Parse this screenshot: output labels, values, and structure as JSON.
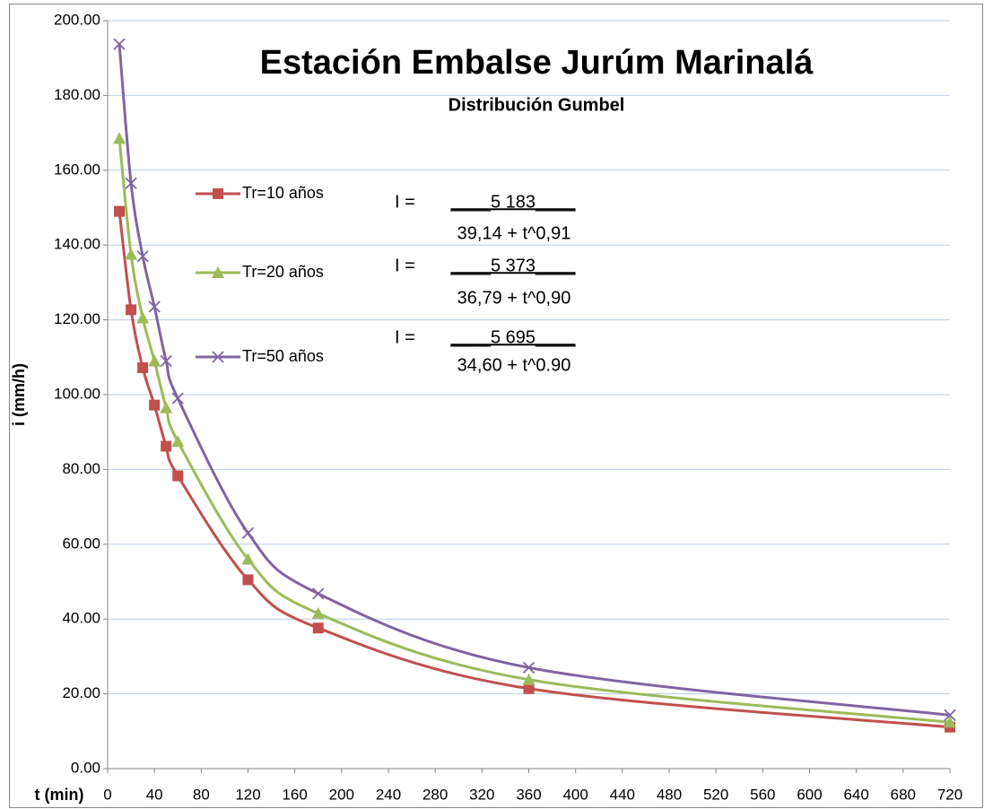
{
  "chart_data": {
    "type": "line",
    "title": "Estación Embalse Jurúm Marinalá",
    "subtitle": "Distribución Gumbel",
    "x_label": "t (min)",
    "y_label": "i (mm/h)",
    "x": [
      10,
      20,
      30,
      40,
      50,
      60,
      120,
      180,
      360,
      720
    ],
    "series": [
      {
        "name": "Tr=10 años",
        "color": "#c0504d",
        "marker": "square",
        "values": [
          149,
          122.7,
          107.2,
          97.2,
          86.2,
          78.3,
          50.5,
          37.6,
          21.4,
          11.1
        ]
      },
      {
        "name": "Tr=20 años",
        "color": "#9bbb59",
        "marker": "triangle",
        "values": [
          168.5,
          137.5,
          120.5,
          109,
          96.5,
          87.5,
          56,
          41.5,
          23.8,
          12.4
        ]
      },
      {
        "name": "Tr=50 años",
        "color": "#8064a2",
        "marker": "x",
        "values": [
          193.7,
          156.5,
          137,
          123.5,
          109,
          99,
          63,
          46.8,
          27,
          14.3
        ]
      }
    ],
    "xlim": [
      0,
      720
    ],
    "xticks": [
      0,
      40,
      80,
      120,
      160,
      200,
      240,
      280,
      320,
      360,
      400,
      440,
      480,
      520,
      560,
      600,
      640,
      680,
      720
    ],
    "ylim": [
      0,
      200
    ],
    "yticks": [
      {
        "value": 0,
        "label": "0.00"
      },
      {
        "value": 20,
        "label": "20.00"
      },
      {
        "value": 40,
        "label": "40.00"
      },
      {
        "value": 60,
        "label": "60.00"
      },
      {
        "value": 80,
        "label": "80.00"
      },
      {
        "value": 100,
        "label": "100.00"
      },
      {
        "value": 120,
        "label": "120.00"
      },
      {
        "value": 140,
        "label": "140.00"
      },
      {
        "value": 160,
        "label": "160.00"
      },
      {
        "value": 180,
        "label": "180.00"
      },
      {
        "value": 200,
        "label": "200.00"
      }
    ],
    "grid": true,
    "smooth": true,
    "legend": "left",
    "annotations": [
      {
        "prefix": "I =",
        "numerator": "____5 183____",
        "denominator": "39,14 + t^0,91"
      },
      {
        "prefix": "I =",
        "numerator": "____5 373____",
        "denominator": "36,79 + t^0,90"
      },
      {
        "prefix": "I =",
        "numerator": "____5 695____",
        "denominator": "34,60 + t^0.90"
      }
    ]
  }
}
